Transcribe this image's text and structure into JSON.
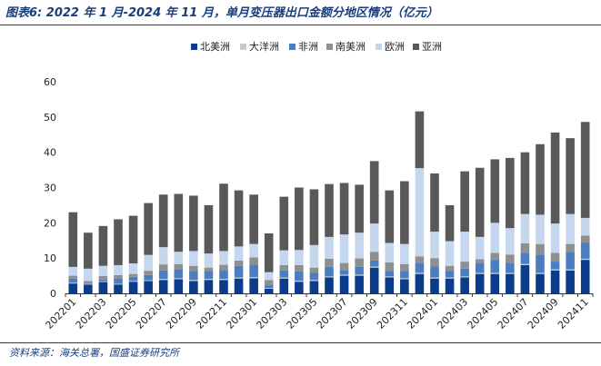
{
  "header": {
    "title": "图表6:  2022 年 1 月-2024 年 11 月，单月变压器出口金额分地区情况（亿元）"
  },
  "footer": {
    "source": "资料来源：海关总署，国盛证券研究所"
  },
  "colors": {
    "北美洲": "#0a3c8a",
    "大洋洲": "#c9c9c9",
    "非洲": "#4a7ec0",
    "南美洲": "#8f8f8f",
    "欧洲": "#c5d7ee",
    "亚洲": "#595959"
  },
  "chart_data": {
    "type": "bar",
    "stacked": true,
    "ylim": [
      0,
      60
    ],
    "yticks": [
      0,
      10,
      20,
      30,
      40,
      50,
      60
    ],
    "legend_position": "top",
    "grid": false,
    "categories": [
      "202201",
      "202202",
      "202203",
      "202204",
      "202205",
      "202206",
      "202207",
      "202208",
      "202209",
      "202210",
      "202211",
      "202212",
      "202301",
      "202302",
      "202303",
      "202304",
      "202305",
      "202306",
      "202307",
      "202308",
      "202309",
      "202310",
      "202311",
      "202312",
      "202401",
      "202402",
      "202403",
      "202404",
      "202405",
      "202406",
      "202407",
      "202408",
      "202409",
      "202410",
      "202411"
    ],
    "xtick_labels": [
      "202201",
      "202203",
      "202205",
      "202207",
      "202209",
      "202211",
      "202301",
      "202303",
      "202305",
      "202307",
      "202309",
      "202311",
      "202401",
      "202403",
      "202405",
      "202407",
      "202409",
      "202411"
    ],
    "series": [
      {
        "name": "北美洲",
        "values": [
          2.8,
          2.5,
          3.2,
          2.5,
          3.3,
          3.5,
          3.8,
          4.0,
          3.5,
          3.8,
          3.8,
          4.2,
          4.3,
          1.3,
          4.2,
          3.3,
          3.5,
          4.5,
          5.0,
          5.0,
          7.3,
          4.5,
          4.0,
          5.5,
          4.2,
          4.2,
          4.5,
          5.5,
          5.5,
          5.5,
          8.0,
          5.5,
          6.5,
          6.5,
          9.5
        ]
      },
      {
        "name": "大洋洲",
        "values": [
          0.2,
          0.2,
          0.2,
          0.2,
          0.2,
          0.2,
          0.3,
          0.3,
          0.3,
          0.3,
          0.3,
          0.3,
          0.3,
          0.2,
          0.3,
          0.3,
          0.3,
          0.3,
          0.3,
          0.3,
          0.3,
          0.3,
          0.3,
          0.3,
          0.3,
          0.3,
          0.3,
          0.3,
          0.3,
          0.3,
          0.3,
          0.3,
          0.3,
          0.3,
          0.3
        ]
      },
      {
        "name": "非洲",
        "values": [
          1.2,
          0.3,
          0.5,
          1.5,
          1.2,
          1.5,
          2.4,
          2.5,
          2.5,
          2.2,
          2.5,
          3.3,
          3.5,
          0.8,
          2.0,
          2.6,
          2.0,
          2.7,
          1.3,
          2.2,
          1.7,
          1.5,
          2.0,
          2.7,
          3.2,
          1.8,
          2.2,
          2.7,
          3.7,
          2.7,
          3.2,
          5.2,
          2.2,
          5.0,
          4.6
        ]
      },
      {
        "name": "南美洲",
        "values": [
          0.8,
          0.5,
          1.0,
          1.0,
          0.8,
          1.2,
          1.7,
          1.5,
          1.5,
          1.0,
          1.5,
          1.5,
          2.1,
          1.5,
          1.5,
          1.8,
          1.5,
          2.3,
          2.0,
          2.4,
          2.5,
          2.5,
          2.0,
          2.0,
          2.3,
          1.5,
          2.0,
          1.2,
          2.0,
          2.5,
          2.7,
          3.0,
          2.5,
          2.2,
          2.0
        ]
      },
      {
        "name": "欧洲",
        "values": [
          2.5,
          3.5,
          2.9,
          2.8,
          3.0,
          4.5,
          4.9,
          3.5,
          4.2,
          4.0,
          3.9,
          4.0,
          3.8,
          2.2,
          4.2,
          4.3,
          6.4,
          6.2,
          8.1,
          7.3,
          8.0,
          5.5,
          5.7,
          25.0,
          7.5,
          7.0,
          8.5,
          6.3,
          8.5,
          7.5,
          8.3,
          8.3,
          8.3,
          8.5,
          5.0
        ]
      },
      {
        "name": "亚洲",
        "values": [
          15.5,
          10.2,
          11.3,
          13.0,
          13.5,
          14.7,
          14.9,
          16.4,
          15.7,
          13.7,
          19.1,
          15.9,
          14.0,
          11.0,
          15.2,
          17.7,
          15.8,
          15.0,
          14.6,
          13.6,
          17.7,
          14.9,
          17.8,
          16.1,
          16.5,
          10.2,
          17.1,
          19.6,
          18.0,
          19.9,
          17.5,
          20.0,
          25.8,
          21.5,
          27.2
        ]
      }
    ]
  }
}
